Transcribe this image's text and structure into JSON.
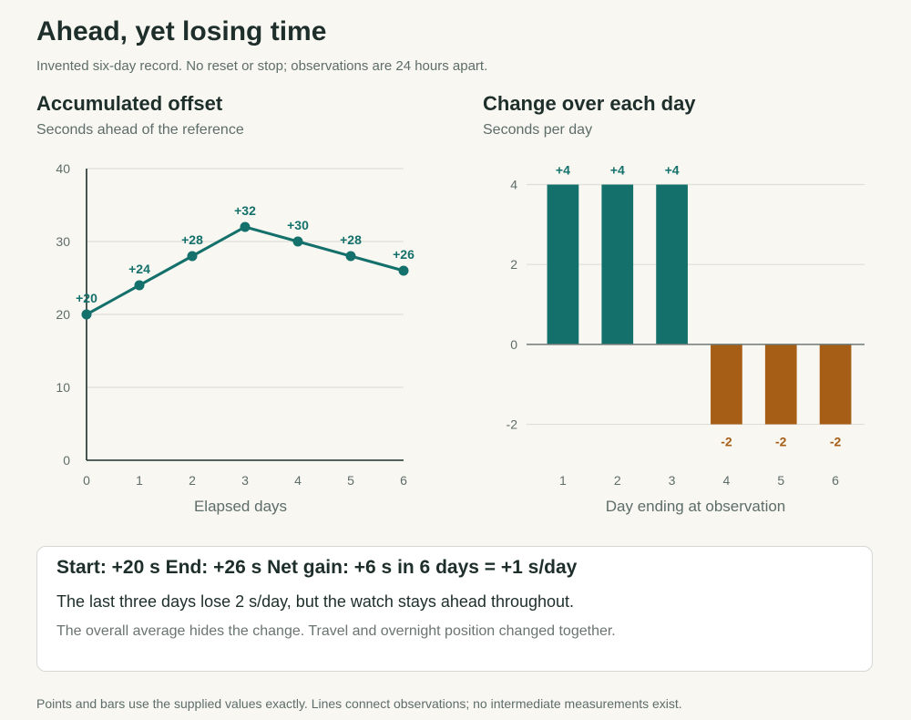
{
  "title": "Ahead, yet losing time",
  "subtitle": "Invented six-day record. No reset or stop; observations are 24 hours apart.",
  "colors": {
    "positive": "#14706a",
    "negative": "#a65e16",
    "grid": "#dddfd9",
    "axis": "#1e2e2b",
    "zero_line": "#6e7a77",
    "text_muted": "#5e6d69"
  },
  "chart_data": [
    {
      "type": "line",
      "title": "Accumulated offset",
      "subtitle": "Seconds ahead of the reference",
      "xlabel": "Elapsed days",
      "ylabel": "",
      "x": [
        0,
        1,
        2,
        3,
        4,
        5,
        6
      ],
      "values": [
        20,
        24,
        28,
        32,
        30,
        28,
        26
      ],
      "data_labels": [
        "+20",
        "+24",
        "+28",
        "+32",
        "+30",
        "+28",
        "+26"
      ],
      "xlim": [
        0,
        6
      ],
      "ylim": [
        0,
        40
      ],
      "yticks": [
        0,
        10,
        20,
        30,
        40
      ],
      "grid": true,
      "markers": true
    },
    {
      "type": "bar",
      "title": "Change over each day",
      "subtitle": "Seconds per day",
      "xlabel": "Day ending at observation",
      "ylabel": "",
      "categories": [
        "1",
        "2",
        "3",
        "4",
        "5",
        "6"
      ],
      "values": [
        4,
        4,
        4,
        -2,
        -2,
        -2
      ],
      "data_labels": [
        "+4",
        "+4",
        "+4",
        "-2",
        "-2",
        "-2"
      ],
      "ylim": [
        -2.9,
        4.4
      ],
      "yticks": [
        -2,
        0,
        2,
        4
      ],
      "grid": true
    }
  ],
  "summary": {
    "headline": "Start: +20 s End: +26 s Net gain: +6 s in 6 days = +1 s/day",
    "line": "The last three days lose 2 s/day, but the watch stays ahead throughout.",
    "note": "The overall average hides the change. Travel and overnight position changed together."
  },
  "footer": "Points and bars use the supplied values exactly. Lines connect observations; no intermediate measurements exist."
}
